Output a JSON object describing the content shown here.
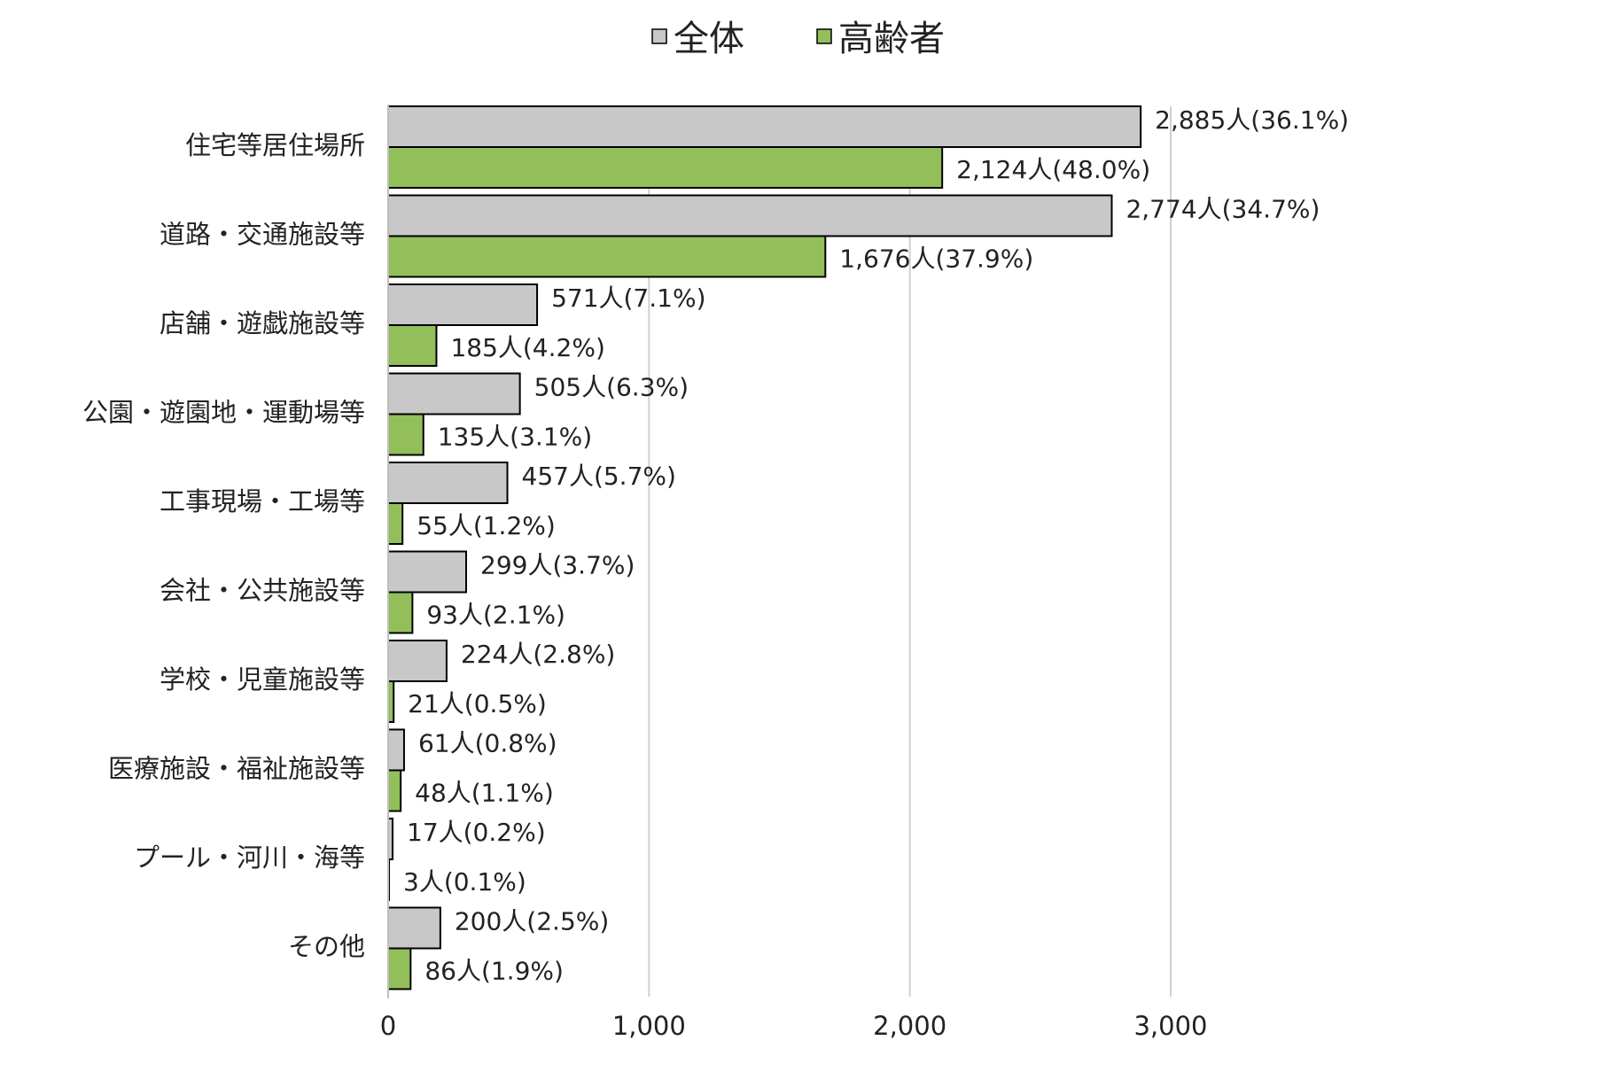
{
  "chart_data": {
    "type": "bar",
    "orientation": "horizontal",
    "title": "",
    "xlabel": "",
    "ylabel": "",
    "xlim": [
      0,
      3000
    ],
    "xticks": [
      0,
      1000,
      2000,
      3000
    ],
    "xtick_labels": [
      "0",
      "1,000",
      "2,000",
      "3,000"
    ],
    "grid": "vertical",
    "legend_position": "top-center",
    "categories": [
      "住宅等居住場所",
      "道路・交通施設等",
      "店舗・遊戯施設等",
      "公園・遊園地・運動場等",
      "工事現場・工場等",
      "会社・公共施設等",
      "学校・児童施設等",
      "医療施設・福祉施設等",
      "プール・河川・海等",
      "その他"
    ],
    "series": [
      {
        "name": "全体",
        "color": "#c8c8c8",
        "values": [
          2885,
          2774,
          571,
          505,
          457,
          299,
          224,
          61,
          17,
          200
        ],
        "labels": [
          "2,885人(36.1%)",
          "2,774人(34.7%)",
          "571人(7.1%)",
          "505人(6.3%)",
          "457人(5.7%)",
          "299人(3.7%)",
          "224人(2.8%)",
          "61人(0.8%)",
          "17人(0.2%)",
          "200人(2.5%)"
        ]
      },
      {
        "name": "高齢者",
        "color": "#92bf5a",
        "values": [
          2124,
          1676,
          185,
          135,
          55,
          93,
          21,
          48,
          3,
          86
        ],
        "labels": [
          "2,124人(48.0%)",
          "1,676人(37.9%)",
          "185人(4.2%)",
          "135人(3.1%)",
          "55人(1.2%)",
          "93人(2.1%)",
          "21人(0.5%)",
          "48人(1.1%)",
          "3人(0.1%)",
          "86人(1.9%)"
        ]
      }
    ]
  }
}
